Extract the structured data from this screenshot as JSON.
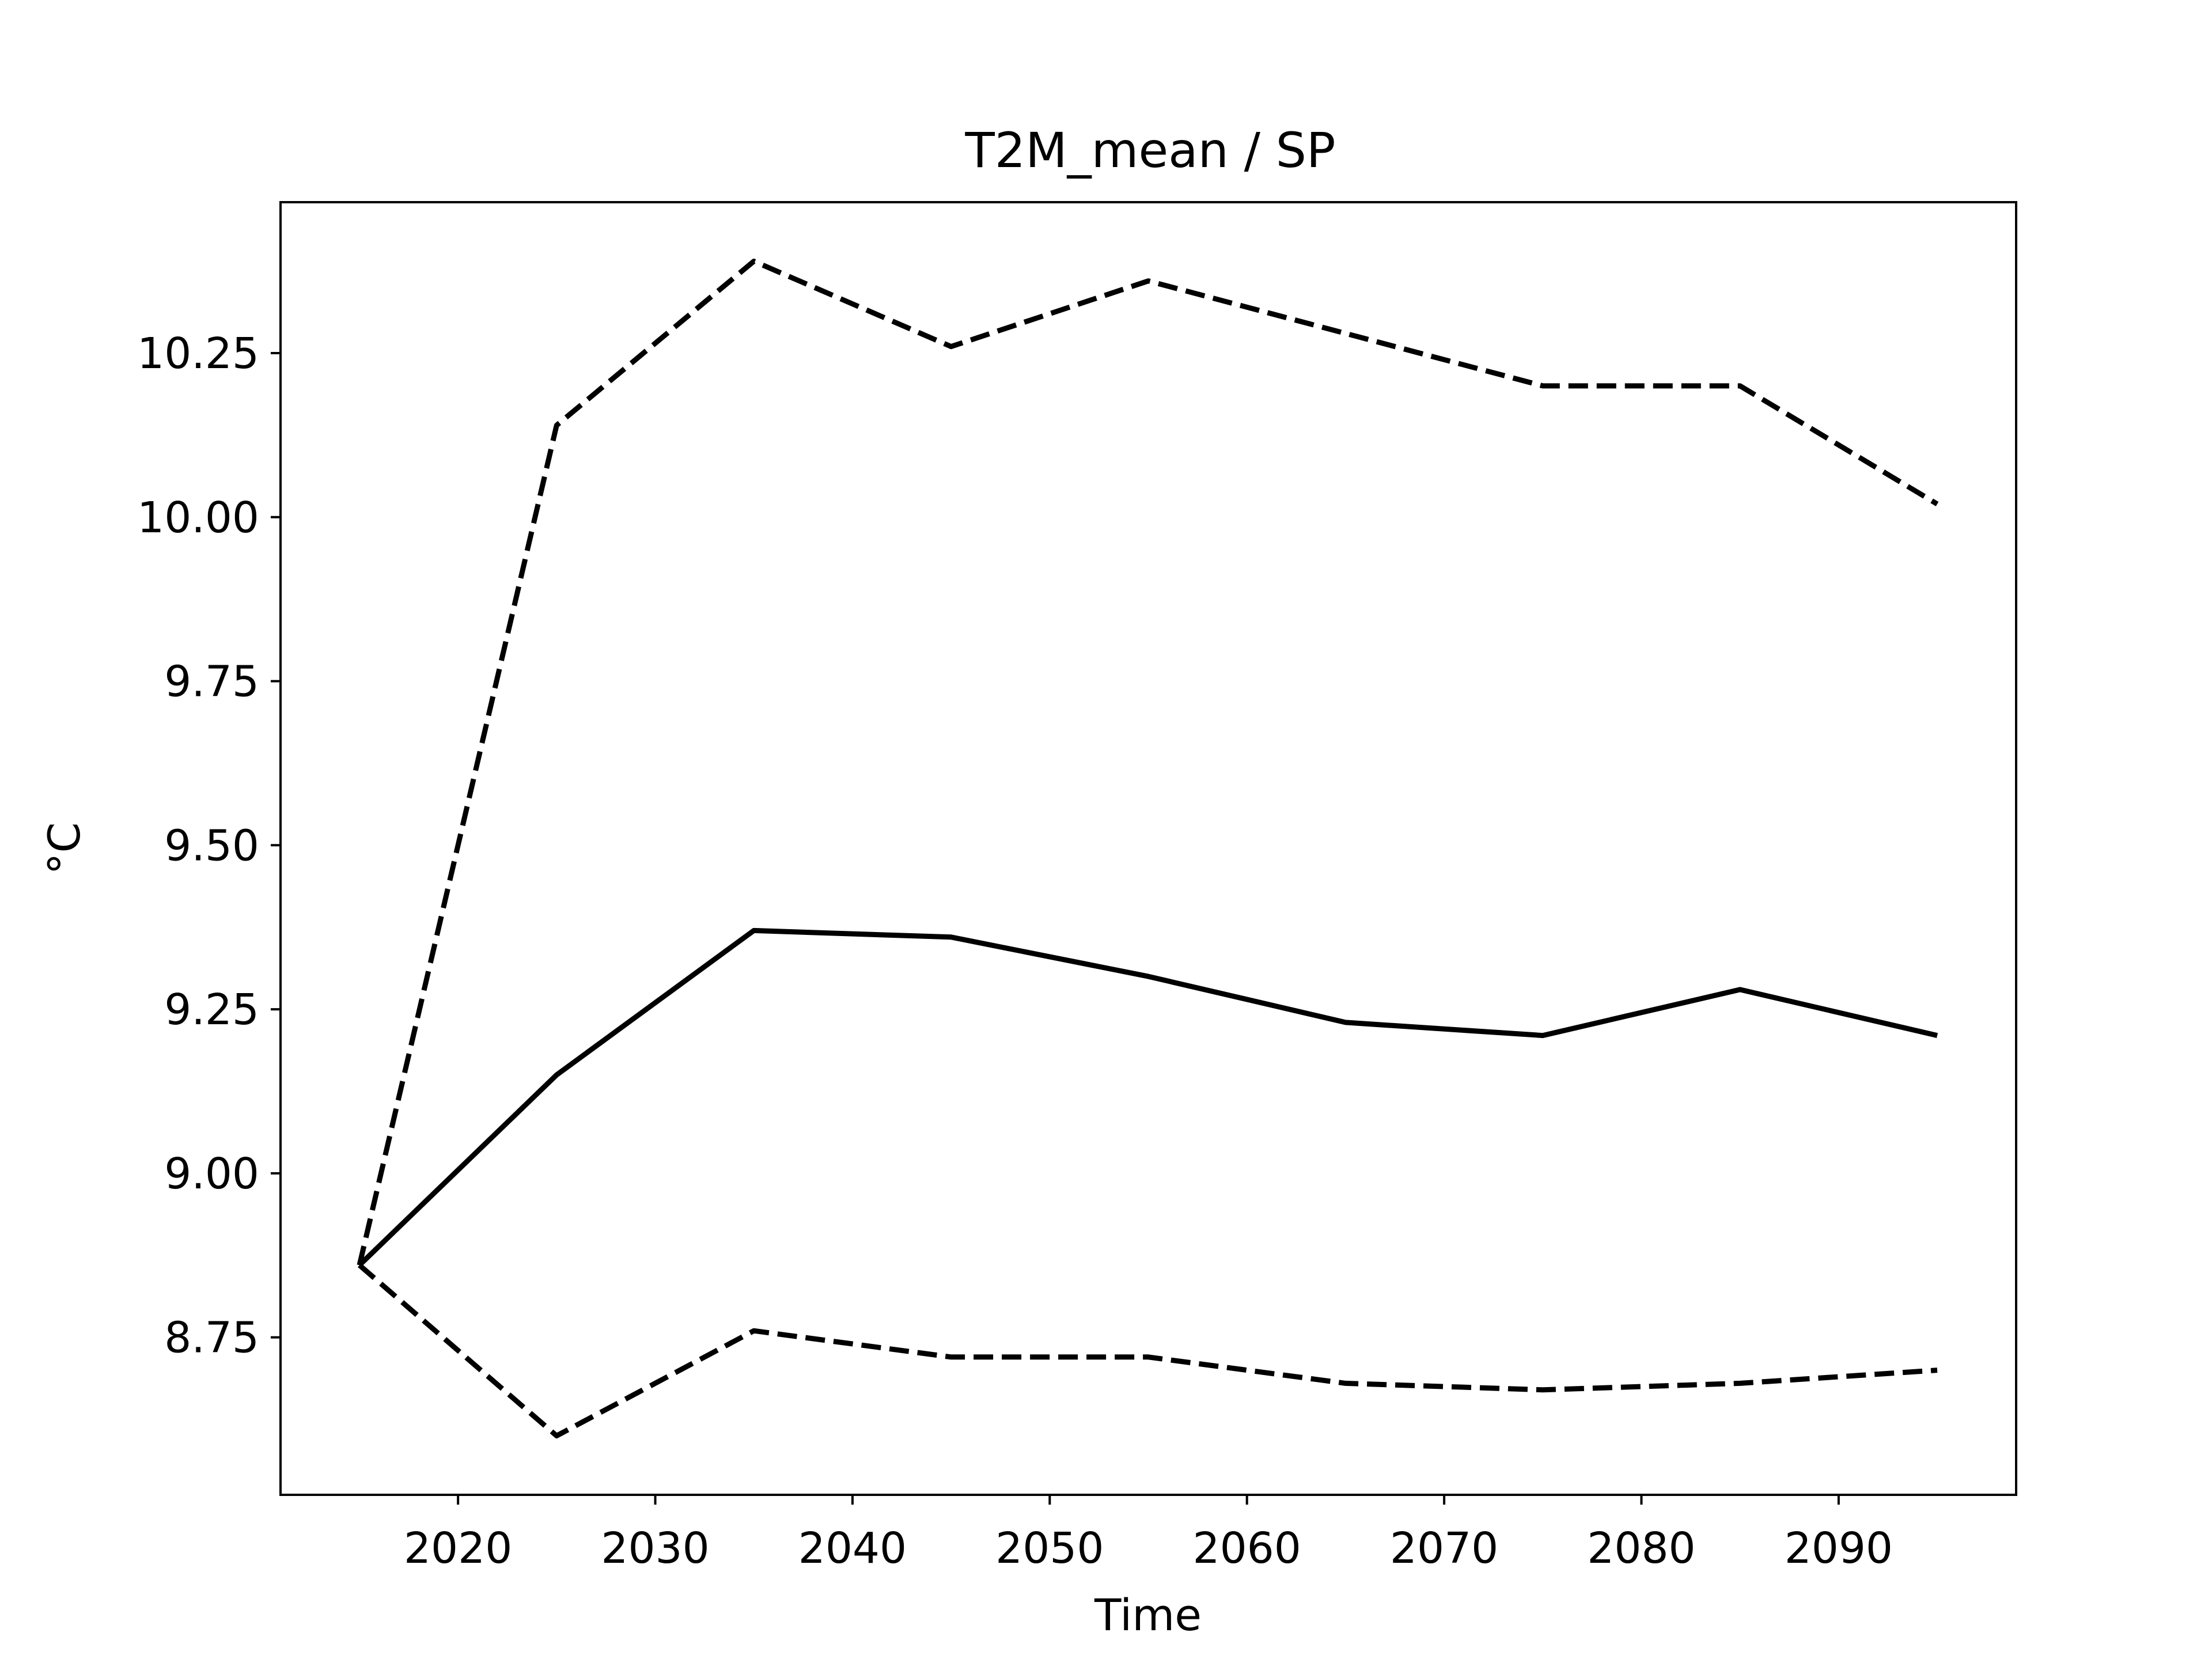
{
  "chart_data": {
    "type": "line",
    "title": "T2M_mean / SP",
    "xlabel": "Time",
    "ylabel": "°C",
    "x": [
      2015,
      2025,
      2035,
      2045,
      2055,
      2065,
      2075,
      2085,
      2095
    ],
    "xlim": [
      2011,
      2099
    ],
    "ylim": [
      8.51,
      10.48
    ],
    "xticks": [
      2020,
      2030,
      2040,
      2050,
      2060,
      2070,
      2080,
      2090
    ],
    "yticks": [
      8.75,
      9.0,
      9.25,
      9.5,
      9.75,
      10.0,
      10.25
    ],
    "ytick_labels": [
      "8.75",
      "9.00",
      "9.25",
      "9.50",
      "9.75",
      "10.00",
      "10.25"
    ],
    "grid": false,
    "series": [
      {
        "style": "solid",
        "color": "#000000",
        "values": [
          8.86,
          9.15,
          9.37,
          9.36,
          9.3,
          9.23,
          9.21,
          9.28,
          9.21
        ]
      },
      {
        "style": "dashed",
        "color": "#000000",
        "values": [
          8.86,
          10.14,
          10.39,
          10.26,
          10.36,
          10.28,
          10.2,
          10.2,
          10.02
        ]
      },
      {
        "style": "dashed",
        "color": "#000000",
        "values": [
          8.86,
          8.6,
          8.76,
          8.72,
          8.72,
          8.68,
          8.67,
          8.68,
          8.7
        ]
      }
    ]
  }
}
